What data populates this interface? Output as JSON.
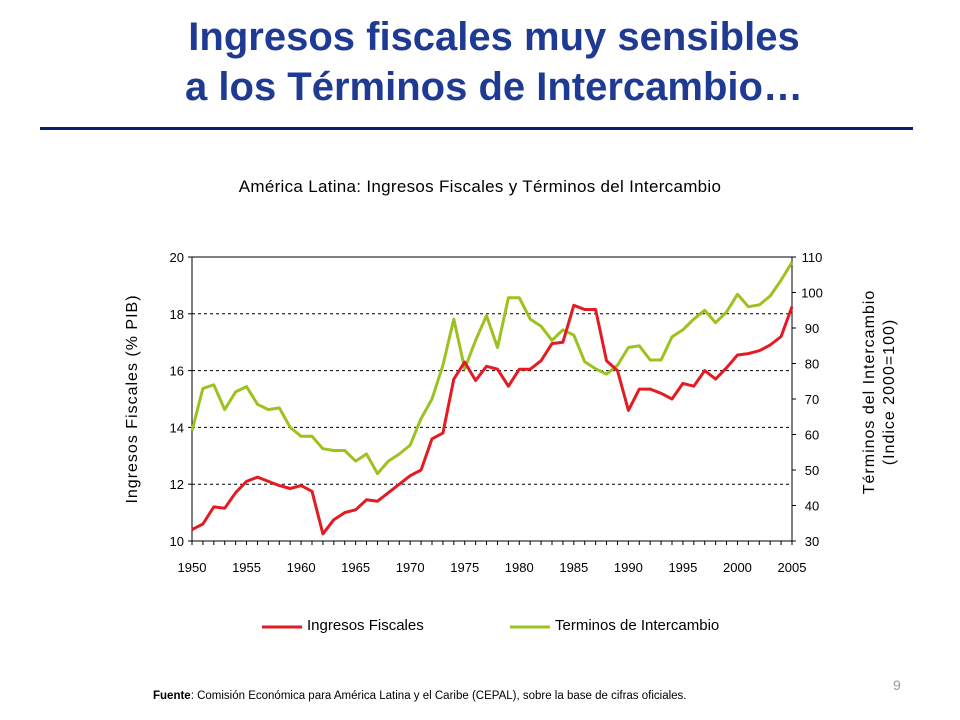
{
  "slide": {
    "title_line1": "Ingresos fiscales muy sensibles",
    "title_line2": "a los Términos de Intercambio…",
    "page_number": "9"
  },
  "footer": {
    "source_label": "Fuente",
    "source_text": ": Comisión Económica para América Latina y el Caribe (CEPAL),  sobre la base de cifras oficiales."
  },
  "colors": {
    "title": "#1f3a93",
    "rule": "#0a1f6b",
    "fiscal": "#e31b23",
    "terms": "#9dc21f"
  },
  "chart_data": {
    "type": "line",
    "title": "América Latina: Ingresos Fiscales y Términos del Intercambio",
    "ylabel_left": "Ingresos Fiscales (% PIB)",
    "ylabel_right_line1": "Términos del Intercambio",
    "ylabel_right_line2": "(Indice 2000=100)",
    "x": [
      1950,
      1951,
      1952,
      1953,
      1954,
      1955,
      1956,
      1957,
      1958,
      1959,
      1960,
      1961,
      1962,
      1963,
      1964,
      1965,
      1966,
      1967,
      1968,
      1969,
      1970,
      1971,
      1972,
      1973,
      1974,
      1975,
      1976,
      1977,
      1978,
      1979,
      1980,
      1981,
      1982,
      1983,
      1984,
      1985,
      1986,
      1987,
      1988,
      1989,
      1990,
      1991,
      1992,
      1993,
      1994,
      1995,
      1996,
      1997,
      1998,
      1999,
      2000,
      2001,
      2002,
      2003,
      2004,
      2005
    ],
    "xlim": [
      1950,
      2005
    ],
    "xticks": [
      1950,
      1955,
      1960,
      1965,
      1970,
      1975,
      1980,
      1985,
      1990,
      1995,
      2000,
      2005
    ],
    "ylim_left": [
      10,
      20
    ],
    "yticks_left": [
      10,
      12,
      14,
      16,
      18,
      20
    ],
    "ylim_right": [
      30,
      110
    ],
    "yticks_right": [
      30,
      40,
      50,
      60,
      70,
      80,
      90,
      100,
      110
    ],
    "grid": "horizontal-dashed",
    "legend_position": "bottom",
    "series": [
      {
        "name": "Ingresos Fiscales",
        "axis": "left",
        "color": "#e31b23",
        "values": [
          10.4,
          10.6,
          11.2,
          11.15,
          11.7,
          12.1,
          12.25,
          12.1,
          11.95,
          11.85,
          11.95,
          11.75,
          10.25,
          10.75,
          11.0,
          11.1,
          11.45,
          11.4,
          11.7,
          12.0,
          12.3,
          12.5,
          13.6,
          13.8,
          15.7,
          16.3,
          15.65,
          16.15,
          16.05,
          15.45,
          16.05,
          16.05,
          16.35,
          16.95,
          17.0,
          18.3,
          18.15,
          18.15,
          16.35,
          16.0,
          14.6,
          15.35,
          15.35,
          15.2,
          15.0,
          15.55,
          15.45,
          16.0,
          15.7,
          16.1,
          16.55,
          16.6,
          16.7,
          16.9,
          17.2,
          18.25
        ]
      },
      {
        "name": "Terminos de Intercambio",
        "axis": "right",
        "color": "#9dc21f",
        "values": [
          61,
          73,
          74,
          67,
          72,
          73.5,
          68.5,
          67,
          67.5,
          62,
          59.5,
          59.5,
          56,
          55.5,
          55.5,
          52.5,
          54.5,
          49,
          52.5,
          54.5,
          57,
          64.5,
          70,
          79.5,
          92.5,
          78.5,
          86.5,
          93.5,
          84.5,
          98.5,
          98.5,
          92.5,
          90.5,
          86.5,
          89.5,
          88,
          80.5,
          78.5,
          77,
          79.5,
          84.5,
          85,
          81,
          81,
          87.5,
          89.5,
          92.5,
          95,
          91.5,
          94.5,
          99.5,
          96,
          96.5,
          99,
          103.5,
          108.5
        ]
      }
    ]
  }
}
